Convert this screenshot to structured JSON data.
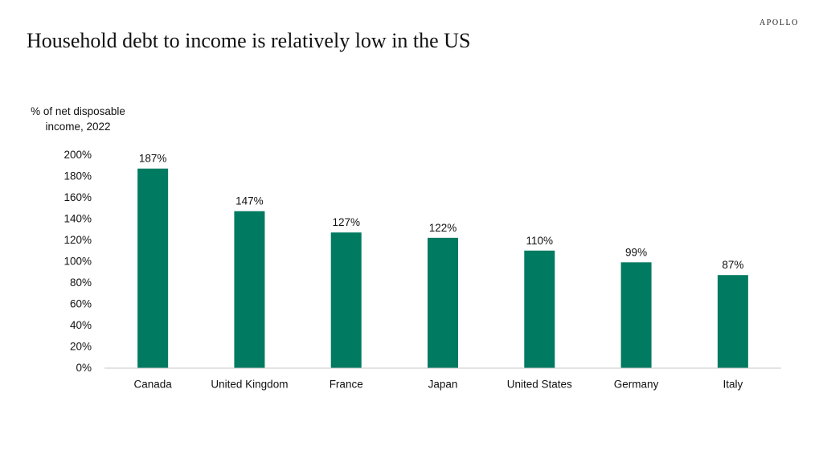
{
  "brand": "APOLLO",
  "title": "Household debt to income is relatively low in the US",
  "ylabel_line1": "% of net disposable",
  "ylabel_line2": "income, 2022",
  "colors": {
    "bar": "#007a60",
    "axis": "#c8c8c8"
  },
  "chart_data": {
    "type": "bar",
    "title": "Household debt to income is relatively low in the US",
    "ylabel": "% of net disposable income, 2022",
    "xlabel": "",
    "categories": [
      "Canada",
      "United Kingdom",
      "France",
      "Japan",
      "United States",
      "Germany",
      "Italy"
    ],
    "values": [
      187,
      147,
      127,
      122,
      110,
      99,
      87
    ],
    "data_labels": [
      "187%",
      "147%",
      "127%",
      "122%",
      "110%",
      "99%",
      "87%"
    ],
    "ylim": [
      0,
      200
    ],
    "yticks": [
      0,
      20,
      40,
      60,
      80,
      100,
      120,
      140,
      160,
      180,
      200
    ],
    "ytick_labels": [
      "0%",
      "20%",
      "40%",
      "60%",
      "80%",
      "100%",
      "120%",
      "140%",
      "160%",
      "180%",
      "200%"
    ],
    "grid": false,
    "legend": "none"
  }
}
